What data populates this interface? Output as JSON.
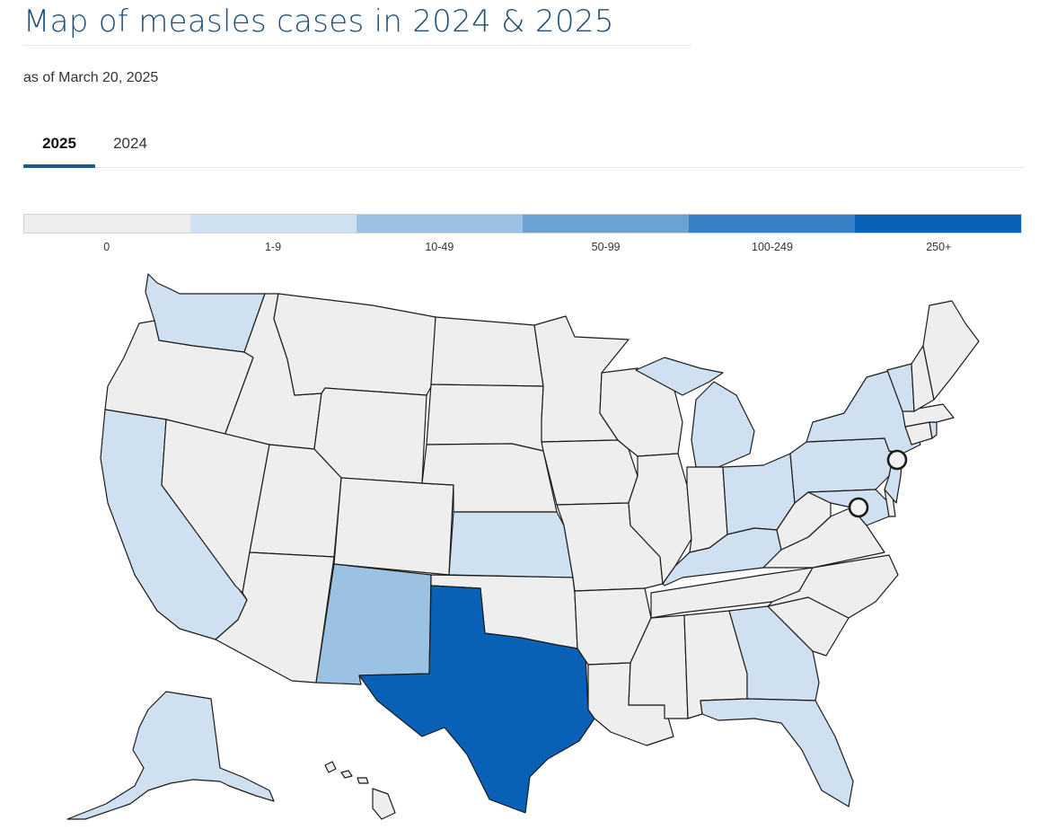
{
  "header": {
    "title": "Map of measles cases in 2024 & 2025",
    "subtitle": "as of March 20, 2025"
  },
  "tabs": [
    {
      "label": "2025",
      "active": true
    },
    {
      "label": "2024",
      "active": false
    }
  ],
  "legend": {
    "bins": [
      {
        "label": "0",
        "color": "#efeeef"
      },
      {
        "label": "1-9",
        "color": "#cfe1f0"
      },
      {
        "label": "10-49",
        "color": "#9cc2e3"
      },
      {
        "label": "50-99",
        "color": "#6aa3d2"
      },
      {
        "label": "100-249",
        "color": "#3780c6"
      },
      {
        "label": "250+",
        "color": "#0861b6"
      }
    ]
  },
  "map_data": {
    "type": "choropleth",
    "region": "United States",
    "year": "2025",
    "states_by_bin": {
      "1-9": [
        "Washington",
        "California",
        "Alaska",
        "Kansas",
        "Michigan",
        "Ohio",
        "Kentucky",
        "Georgia",
        "Florida",
        "Pennsylvania",
        "New York",
        "Vermont",
        "New Jersey",
        "Maryland",
        "Rhode Island"
      ],
      "10-49": [
        "New Mexico"
      ],
      "250+": [
        "Texas"
      ]
    },
    "default_bin": "0",
    "markers": [
      "New York City",
      "Washington, D.C."
    ]
  }
}
